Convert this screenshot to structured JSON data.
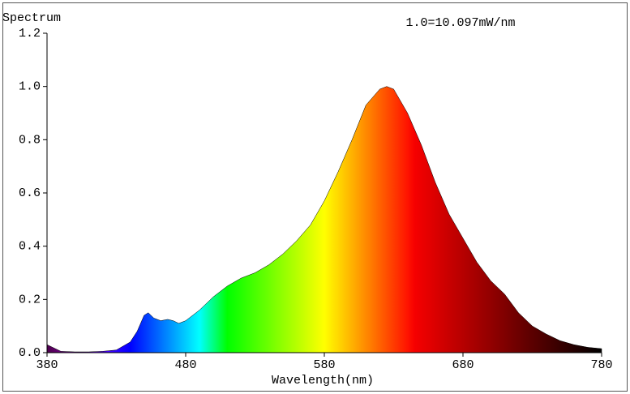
{
  "chart_data": {
    "type": "area",
    "title": "Spectrum",
    "annotation": "1.0=10.097mW/nm",
    "xlabel": "Wavelength(nm)",
    "x": [
      380,
      390,
      400,
      410,
      420,
      430,
      440,
      445,
      450,
      453,
      457,
      462,
      467,
      471,
      475,
      480,
      490,
      500,
      510,
      520,
      530,
      540,
      550,
      560,
      570,
      580,
      590,
      600,
      610,
      620,
      625,
      630,
      640,
      650,
      660,
      670,
      680,
      690,
      700,
      710,
      720,
      730,
      740,
      750,
      760,
      770,
      780
    ],
    "values": [
      0.03,
      0.005,
      0.003,
      0.003,
      0.005,
      0.01,
      0.04,
      0.08,
      0.14,
      0.15,
      0.13,
      0.12,
      0.125,
      0.12,
      0.11,
      0.12,
      0.16,
      0.21,
      0.25,
      0.28,
      0.3,
      0.33,
      0.37,
      0.42,
      0.48,
      0.57,
      0.68,
      0.8,
      0.93,
      0.99,
      1.0,
      0.99,
      0.9,
      0.78,
      0.64,
      0.52,
      0.43,
      0.34,
      0.27,
      0.22,
      0.15,
      0.1,
      0.07,
      0.045,
      0.03,
      0.02,
      0.015
    ],
    "xlim": [
      380,
      780
    ],
    "ylim": [
      0,
      1.2
    ],
    "xticks": [
      380,
      480,
      580,
      680,
      780
    ],
    "yticks": [
      {
        "value": 0,
        "label": "0.0"
      },
      0.2,
      0.4,
      0.6,
      0.8,
      {
        "value": 1,
        "label": "1.0"
      },
      1.2
    ]
  }
}
